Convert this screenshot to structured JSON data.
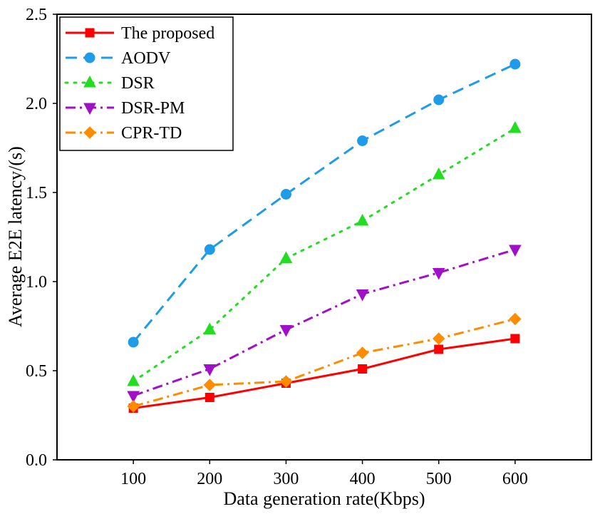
{
  "chart_data": {
    "type": "line",
    "title": "",
    "xlabel": "Data generation rate(Kbps)",
    "ylabel": "Average E2E latency/(s)",
    "x": [
      100,
      200,
      300,
      400,
      500,
      600
    ],
    "x_tick_labels": [
      "100",
      "200",
      "300",
      "400",
      "500",
      "600"
    ],
    "y_tick_labels": [
      "0.0",
      "0.5",
      "1.0",
      "1.5",
      "2.0",
      "2.5"
    ],
    "y_ticks": [
      0,
      0.5,
      1.0,
      1.5,
      2.0,
      2.5
    ],
    "ylim": [
      0,
      2.5
    ],
    "xlim": [
      0,
      700
    ],
    "grid": false,
    "legend_position": "top-left",
    "series": [
      {
        "name": "The proposed",
        "values": [
          0.29,
          0.35,
          0.43,
          0.51,
          0.62,
          0.68
        ],
        "color": "#ff0000",
        "marker": "square",
        "dash": "solid"
      },
      {
        "name": "AODV",
        "values": [
          0.66,
          1.18,
          1.49,
          1.79,
          2.02,
          2.22
        ],
        "color": "#1e9be9",
        "marker": "circle",
        "dash": "dashed"
      },
      {
        "name": "DSR",
        "values": [
          0.44,
          0.73,
          1.13,
          1.34,
          1.6,
          1.86
        ],
        "color": "#22dd22",
        "marker": "triangle-up",
        "dash": "dotted"
      },
      {
        "name": "DSR-PM",
        "values": [
          0.36,
          0.51,
          0.73,
          0.93,
          1.05,
          1.18
        ],
        "color": "#a010c8",
        "marker": "triangle-down",
        "dash": "dashdot"
      },
      {
        "name": "CPR-TD",
        "values": [
          0.3,
          0.42,
          0.44,
          0.6,
          0.68,
          0.79
        ],
        "color": "#ff8c00",
        "marker": "diamond",
        "dash": "dashdot"
      }
    ]
  }
}
